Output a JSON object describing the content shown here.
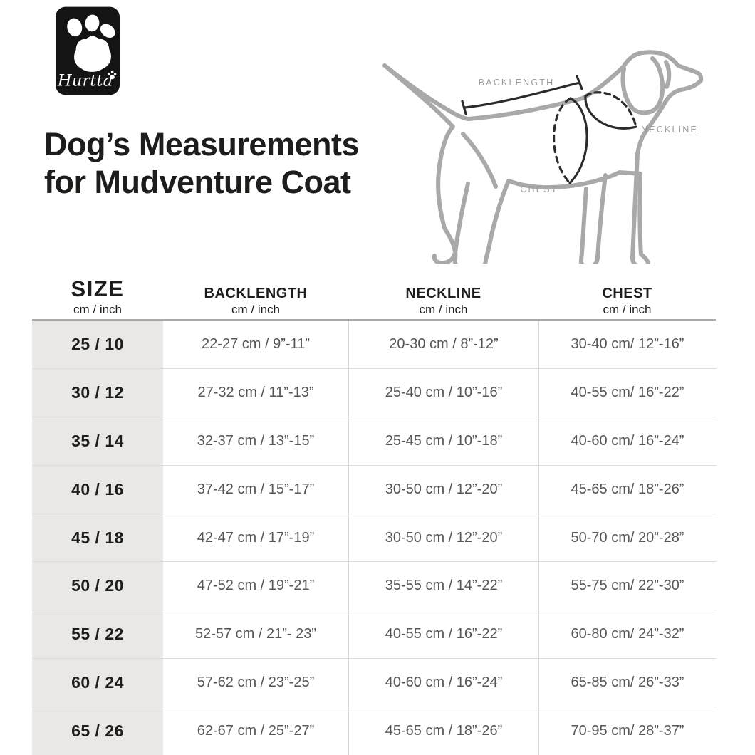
{
  "logo": {
    "brand": "Hurtta"
  },
  "title": {
    "line1": "Dog’s Measurements",
    "line2": "for Mudventure Coat"
  },
  "diagram": {
    "labels": {
      "backlength": "BACKLENGTH",
      "neckline": "NECKLINE",
      "chest": "CHEST"
    }
  },
  "table": {
    "columns": [
      {
        "label": "SIZE",
        "sublabel": "cm / inch"
      },
      {
        "label": "BACKLENGTH",
        "sublabel": "cm / inch"
      },
      {
        "label": "NECKLINE",
        "sublabel": "cm / inch"
      },
      {
        "label": "CHEST",
        "sublabel": "cm / inch"
      }
    ],
    "rows": [
      {
        "size": "25 / 10",
        "backlength": "22-27 cm / 9”-11”",
        "neckline": "20-30 cm / 8”-12”",
        "chest": "30-40 cm/ 12”-16”"
      },
      {
        "size": "30 / 12",
        "backlength": "27-32 cm / 11”-13”",
        "neckline": "25-40 cm / 10”-16”",
        "chest": "40-55 cm/ 16”-22”"
      },
      {
        "size": "35 / 14",
        "backlength": "32-37 cm / 13”-15”",
        "neckline": "25-45 cm / 10”-18”",
        "chest": "40-60 cm/ 16”-24”"
      },
      {
        "size": "40 / 16",
        "backlength": "37-42 cm / 15”-17”",
        "neckline": "30-50 cm / 12”-20”",
        "chest": "45-65 cm/ 18”-26”"
      },
      {
        "size": "45 / 18",
        "backlength": "42-47 cm / 17”-19”",
        "neckline": "30-50 cm / 12”-20”",
        "chest": "50-70 cm/ 20”-28”"
      },
      {
        "size": "50 / 20",
        "backlength": "47-52 cm / 19”-21”",
        "neckline": "35-55 cm / 14”-22”",
        "chest": "55-75 cm/ 22”-30”"
      },
      {
        "size": "55 / 22",
        "backlength": "52-57 cm / 21”- 23”",
        "neckline": "40-55 cm / 16”-22”",
        "chest": "60-80 cm/ 24”-32”"
      },
      {
        "size": "60 / 24",
        "backlength": "57-62 cm / 23”-25”",
        "neckline": "40-60 cm / 16”-24”",
        "chest": "65-85 cm/ 26”-33”"
      },
      {
        "size": "65 / 26",
        "backlength": "62-67 cm / 25”-27”",
        "neckline": "45-65 cm / 18”-26”",
        "chest": "70-95 cm/ 28”-37”"
      }
    ]
  },
  "colors": {
    "logo_bg": "#141414",
    "size_column_bg": "#e9e8e6",
    "heading_text": "#1d1d1b",
    "cell_text": "#565656",
    "diagram_outline": "#a9a9a9",
    "measurement_line": "#2b2b28",
    "diagram_label": "#9b9b9b",
    "table_top_border": "#a9a9a9",
    "row_divider": "#dcdcdc"
  }
}
